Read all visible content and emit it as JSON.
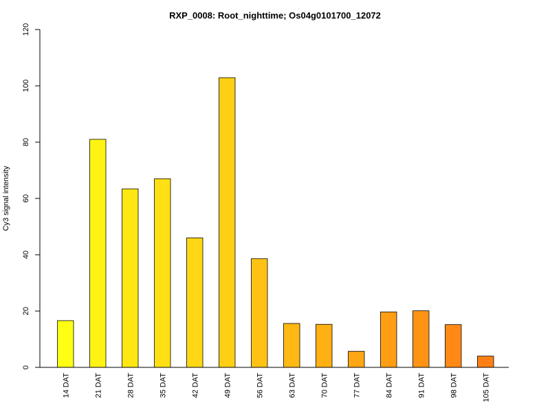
{
  "chart_data": {
    "type": "bar",
    "title": "RXP_0008: Root_nighttime; Os04g0101700_12072",
    "xlabel": "",
    "ylabel": "Cy3 signal intensity",
    "ylim": [
      0,
      120
    ],
    "yticks": [
      0,
      20,
      40,
      60,
      80,
      100,
      120
    ],
    "grid": false,
    "legend": "none",
    "categories": [
      "14 DAT",
      "21 DAT",
      "28 DAT",
      "35 DAT",
      "42 DAT",
      "49 DAT",
      "56 DAT",
      "63 DAT",
      "70 DAT",
      "77 DAT",
      "84 DAT",
      "91 DAT",
      "98 DAT",
      "105 DAT"
    ],
    "values": [
      16.6,
      81.0,
      63.4,
      67.0,
      46.0,
      102.9,
      38.6,
      15.6,
      15.3,
      5.7,
      19.7,
      20.1,
      15.2,
      4.0
    ],
    "colors": [
      "#FFFF14",
      "#FFF314",
      "#FFE714",
      "#FFE014",
      "#FFD714",
      "#FFCF14",
      "#FFC214",
      "#FFB814",
      "#FFB014",
      "#FFA614",
      "#FF9E14",
      "#FF9314",
      "#FF8914",
      "#FF7F14"
    ],
    "bar_border_color": "#000000"
  }
}
